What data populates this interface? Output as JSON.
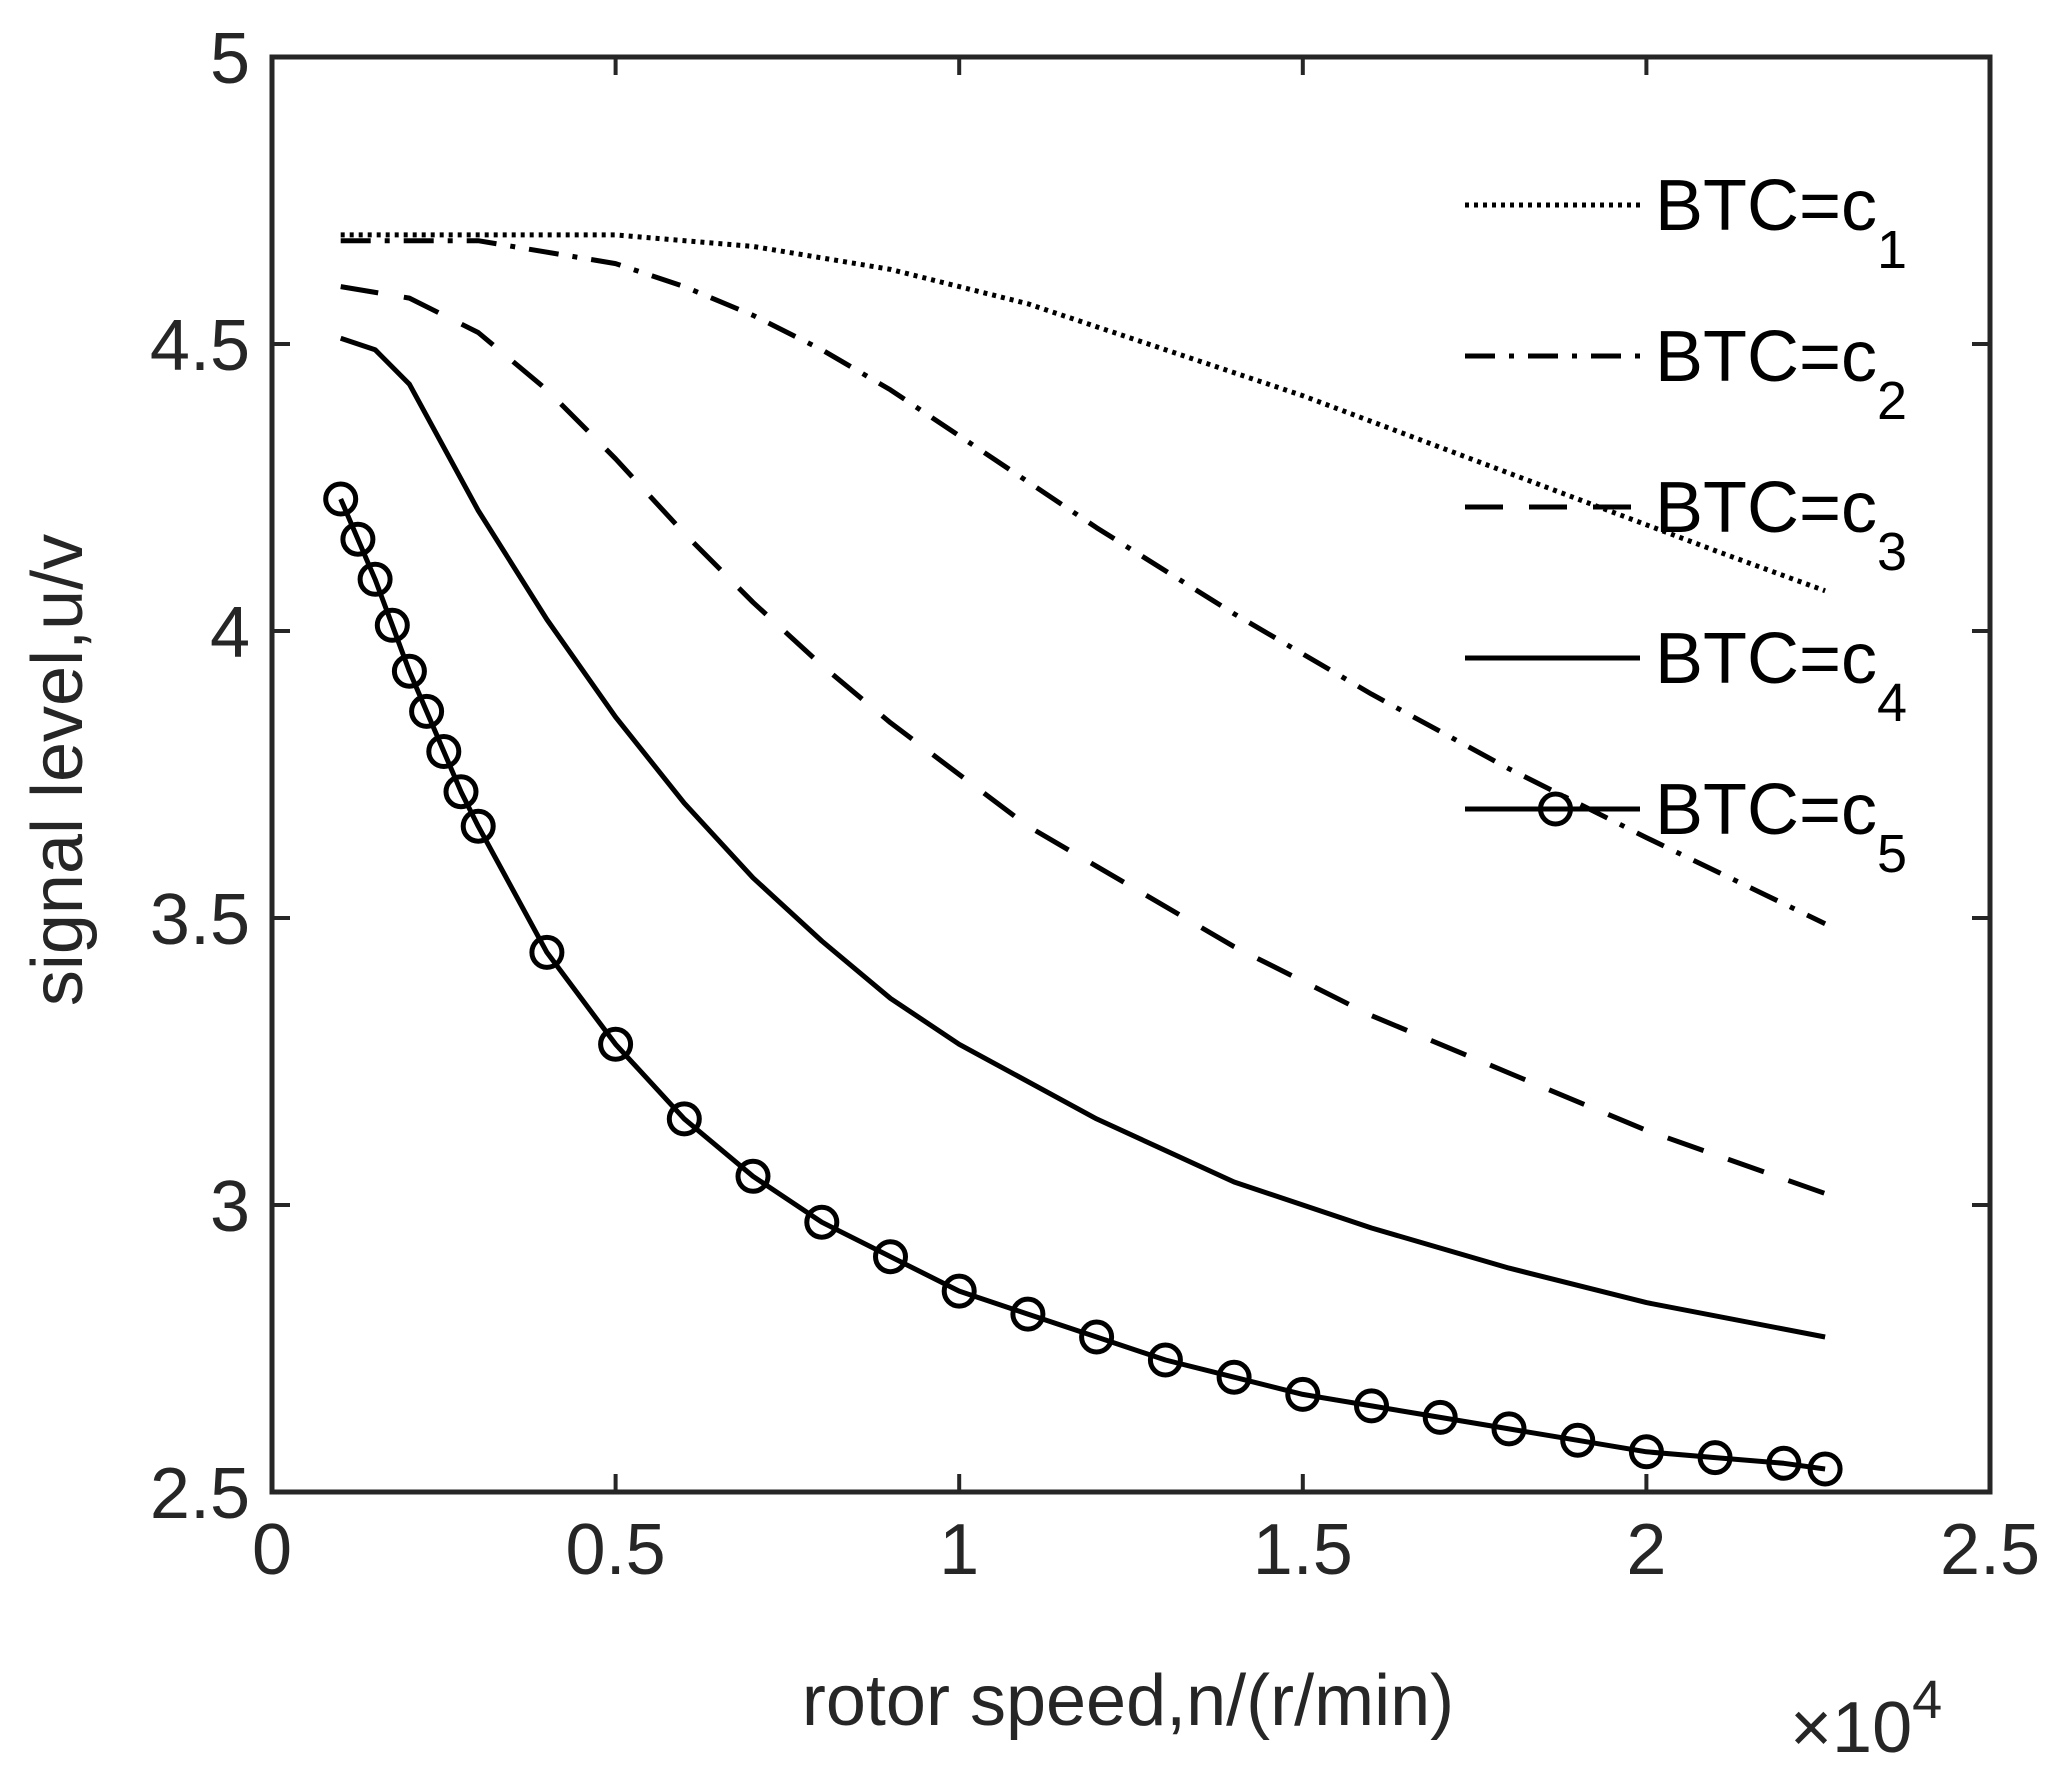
{
  "chart_data": {
    "type": "line",
    "title": "",
    "xlabel": "rotor speed,n/(r/min)",
    "ylabel": "signal level,u/v",
    "x_exponent_label": "×10",
    "x_exponent_power": "4",
    "xlim": [
      0,
      2.5
    ],
    "ylim": [
      2.5,
      5
    ],
    "xticks": [
      0,
      0.5,
      1,
      1.5,
      2,
      2.5
    ],
    "xtick_labels": [
      "0",
      "0.5",
      "1",
      "1.5",
      "2",
      "2.5"
    ],
    "yticks": [
      2.5,
      3,
      3.5,
      4,
      4.5,
      5
    ],
    "ytick_labels": [
      "2.5",
      "3",
      "3.5",
      "4",
      "4.5",
      "5"
    ],
    "grid": false,
    "legend_position": "top-right",
    "series": [
      {
        "name": "BTC=c1",
        "label_main": "BTC=c",
        "label_sub": "1",
        "style": "dotted",
        "marker": "none",
        "x": [
          0.1,
          0.3,
          0.5,
          0.7,
          0.9,
          1.1,
          1.3,
          1.5,
          1.7,
          1.9,
          2.1,
          2.26
        ],
        "y": [
          4.69,
          4.69,
          4.69,
          4.67,
          4.63,
          4.57,
          4.49,
          4.41,
          4.32,
          4.23,
          4.14,
          4.07
        ]
      },
      {
        "name": "BTC=c2",
        "label_main": "BTC=c",
        "label_sub": "2",
        "style": "dashdot",
        "marker": "none",
        "x": [
          0.1,
          0.3,
          0.5,
          0.6,
          0.7,
          0.8,
          0.9,
          1.0,
          1.2,
          1.4,
          1.6,
          1.8,
          2.0,
          2.26
        ],
        "y": [
          4.68,
          4.68,
          4.64,
          4.6,
          4.55,
          4.49,
          4.42,
          4.34,
          4.18,
          4.03,
          3.89,
          3.76,
          3.64,
          3.49
        ]
      },
      {
        "name": "BTC=c3",
        "label_main": "BTC=c",
        "label_sub": "3",
        "style": "dashed",
        "marker": "none",
        "x": [
          0.1,
          0.2,
          0.3,
          0.4,
          0.5,
          0.6,
          0.7,
          0.8,
          0.9,
          1.0,
          1.1,
          1.2,
          1.4,
          1.6,
          1.8,
          2.0,
          2.26
        ],
        "y": [
          4.6,
          4.58,
          4.52,
          4.42,
          4.3,
          4.17,
          4.05,
          3.94,
          3.84,
          3.75,
          3.66,
          3.59,
          3.45,
          3.33,
          3.23,
          3.13,
          3.02
        ]
      },
      {
        "name": "BTC=c4",
        "label_main": "BTC=c",
        "label_sub": "4",
        "style": "solid",
        "marker": "none",
        "x": [
          0.1,
          0.15,
          0.2,
          0.3,
          0.4,
          0.5,
          0.6,
          0.7,
          0.8,
          0.9,
          1.0,
          1.2,
          1.4,
          1.6,
          1.8,
          2.0,
          2.26
        ],
        "y": [
          4.51,
          4.49,
          4.43,
          4.21,
          4.02,
          3.85,
          3.7,
          3.57,
          3.46,
          3.36,
          3.28,
          3.15,
          3.04,
          2.96,
          2.89,
          2.83,
          2.77
        ]
      },
      {
        "name": "BTC=c5",
        "label_main": "BTC=c",
        "label_sub": "5",
        "style": "solid",
        "marker": "circle",
        "x": [
          0.1,
          0.125,
          0.15,
          0.175,
          0.2,
          0.225,
          0.25,
          0.275,
          0.3,
          0.4,
          0.5,
          0.6,
          0.7,
          0.8,
          0.9,
          1.0,
          1.1,
          1.2,
          1.3,
          1.4,
          1.5,
          1.6,
          1.7,
          1.8,
          1.9,
          2.0,
          2.1,
          2.2,
          2.26
        ],
        "y": [
          4.23,
          4.16,
          4.09,
          4.01,
          3.93,
          3.86,
          3.79,
          3.72,
          3.66,
          3.44,
          3.28,
          3.15,
          3.05,
          2.97,
          2.91,
          2.85,
          2.81,
          2.77,
          2.73,
          2.7,
          2.67,
          2.65,
          2.63,
          2.61,
          2.59,
          2.57,
          2.56,
          2.55,
          2.54
        ]
      }
    ]
  }
}
